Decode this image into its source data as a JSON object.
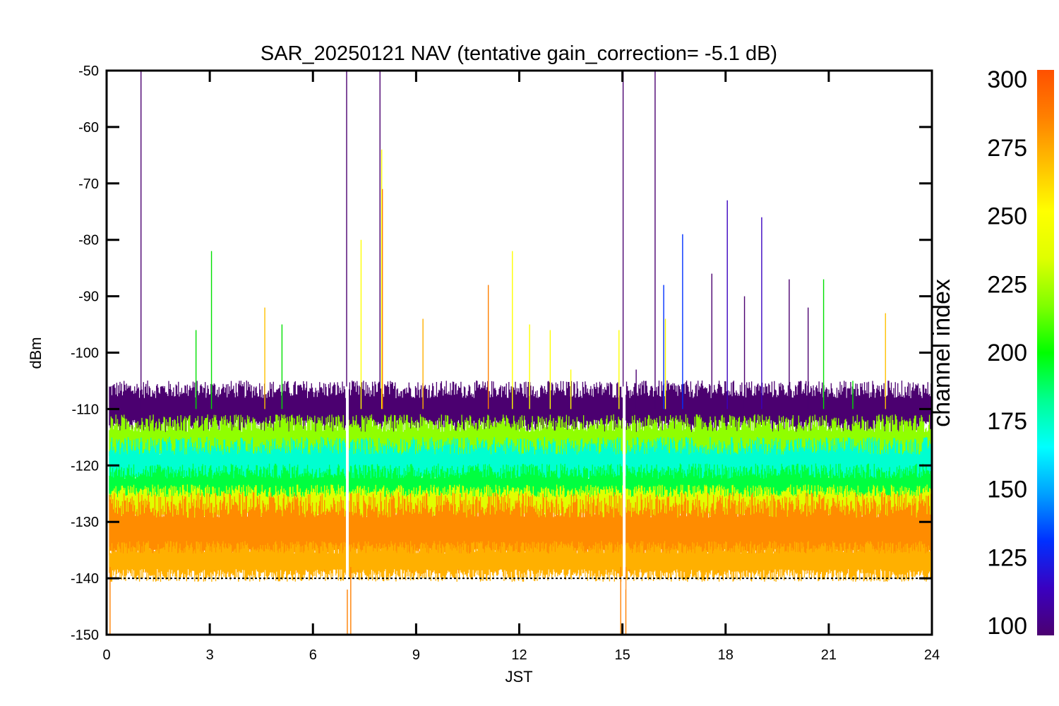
{
  "chart_data": {
    "type": "line",
    "title": "SAR_20250121 NAV (tentative gain_correction= -5.1 dB)",
    "xlabel": "JST",
    "ylabel": "dBm",
    "xlim": [
      0,
      24
    ],
    "ylim": [
      -150,
      -50
    ],
    "x_ticks": [
      0,
      3,
      6,
      9,
      12,
      15,
      18,
      21,
      24
    ],
    "x_tick_labels": [
      "0",
      "3",
      "6",
      "9",
      "12",
      "15",
      "18",
      "21",
      "24"
    ],
    "y_ticks": [
      -50,
      -60,
      -70,
      -80,
      -90,
      -100,
      -110,
      -120,
      -130,
      -140,
      -150
    ],
    "y_tick_labels": [
      "-50",
      "-60",
      "-70",
      "-80",
      "-90",
      "-100",
      "-110",
      "-120",
      "-130",
      "-140",
      "-150"
    ],
    "reference_line_dbm": -140,
    "gaps_jst": [
      7.0,
      15.05
    ],
    "colorbar": {
      "title": "channel index",
      "min": 100,
      "max": 300,
      "ticks": [
        300,
        275,
        250,
        225,
        200,
        175,
        150,
        125,
        100
      ],
      "tick_labels": [
        "300",
        "275",
        "250",
        "225",
        "200",
        "175",
        "150",
        "125",
        "100"
      ],
      "colors": [
        "#4b0070",
        "#3a00c0",
        "#0030ff",
        "#00a0ff",
        "#00ffff",
        "#00ff90",
        "#00ff00",
        "#80ff00",
        "#e0ff00",
        "#ffff00",
        "#ffc000",
        "#ff8000",
        "#ff5000"
      ]
    },
    "bands": [
      {
        "channel_index": 110,
        "color": "#4b0070",
        "center_dbm": -110,
        "spread_dbm": 3.5
      },
      {
        "channel_index": 250,
        "color": "#90ff00",
        "center_dbm": -116,
        "spread_dbm": 3.5
      },
      {
        "channel_index": 190,
        "color": "#00ffd0",
        "center_dbm": -120,
        "spread_dbm": 3.5
      },
      {
        "channel_index": 230,
        "color": "#00ff40",
        "center_dbm": -124,
        "spread_dbm": 3.0
      },
      {
        "channel_index": 270,
        "color": "#e0ff00",
        "center_dbm": -127,
        "spread_dbm": 2.5
      },
      {
        "channel_index": 285,
        "color": "#ff8c00",
        "center_dbm": -132,
        "spread_dbm": 5.0
      },
      {
        "channel_index": 280,
        "color": "#ffb000",
        "center_dbm": -137,
        "spread_dbm": 2.5
      }
    ],
    "spikes": [
      {
        "x": 1.0,
        "peak": -50,
        "color": "#4b0070"
      },
      {
        "x": 2.6,
        "peak": -96,
        "color": "#00e000"
      },
      {
        "x": 3.05,
        "peak": -82,
        "color": "#00e000"
      },
      {
        "x": 4.6,
        "peak": -92,
        "color": "#ffc000"
      },
      {
        "x": 5.1,
        "peak": -95,
        "color": "#00e000"
      },
      {
        "x": 6.98,
        "peak": -50,
        "color": "#4b0070"
      },
      {
        "x": 7.4,
        "peak": -80,
        "color": "#ffff00"
      },
      {
        "x": 7.95,
        "peak": -50,
        "color": "#4b0070"
      },
      {
        "x": 8.0,
        "peak": -64,
        "color": "#ffff00"
      },
      {
        "x": 8.02,
        "peak": -71,
        "color": "#ff8000"
      },
      {
        "x": 9.2,
        "peak": -94,
        "color": "#ffb000"
      },
      {
        "x": 11.1,
        "peak": -88,
        "color": "#ff8000"
      },
      {
        "x": 11.8,
        "peak": -82,
        "color": "#ffff00"
      },
      {
        "x": 12.3,
        "peak": -95,
        "color": "#ffff00"
      },
      {
        "x": 12.9,
        "peak": -96,
        "color": "#ffff00"
      },
      {
        "x": 13.5,
        "peak": -103,
        "color": "#ffff00"
      },
      {
        "x": 14.9,
        "peak": -96,
        "color": "#ffff00"
      },
      {
        "x": 15.02,
        "peak": -50,
        "color": "#4b0070"
      },
      {
        "x": 15.4,
        "peak": -103,
        "color": "#4b0070"
      },
      {
        "x": 15.95,
        "peak": -50,
        "color": "#4b0070"
      },
      {
        "x": 16.2,
        "peak": -88,
        "color": "#0030ff"
      },
      {
        "x": 16.25,
        "peak": -94,
        "color": "#ffff00"
      },
      {
        "x": 16.75,
        "peak": -79,
        "color": "#0030ff"
      },
      {
        "x": 17.6,
        "peak": -86,
        "color": "#4b0070"
      },
      {
        "x": 18.05,
        "peak": -73,
        "color": "#3a00c0"
      },
      {
        "x": 18.55,
        "peak": -90,
        "color": "#4b0070"
      },
      {
        "x": 19.05,
        "peak": -76,
        "color": "#3a00c0"
      },
      {
        "x": 19.85,
        "peak": -87,
        "color": "#4b0070"
      },
      {
        "x": 20.4,
        "peak": -92,
        "color": "#4b0070"
      },
      {
        "x": 20.85,
        "peak": -87,
        "color": "#00e000"
      },
      {
        "x": 21.7,
        "peak": -105,
        "color": "#00e000"
      },
      {
        "x": 22.65,
        "peak": -93,
        "color": "#ffc000"
      }
    ],
    "dips": [
      {
        "x": 0.1,
        "low": -150,
        "color": "#ff8000"
      },
      {
        "x": 7.0,
        "low": -150,
        "color": "#ff8000"
      },
      {
        "x": 7.1,
        "low": -150,
        "color": "#ff8000"
      },
      {
        "x": 14.95,
        "low": -150,
        "color": "#ff8000"
      },
      {
        "x": 15.1,
        "low": -150,
        "color": "#ff8000"
      }
    ]
  }
}
